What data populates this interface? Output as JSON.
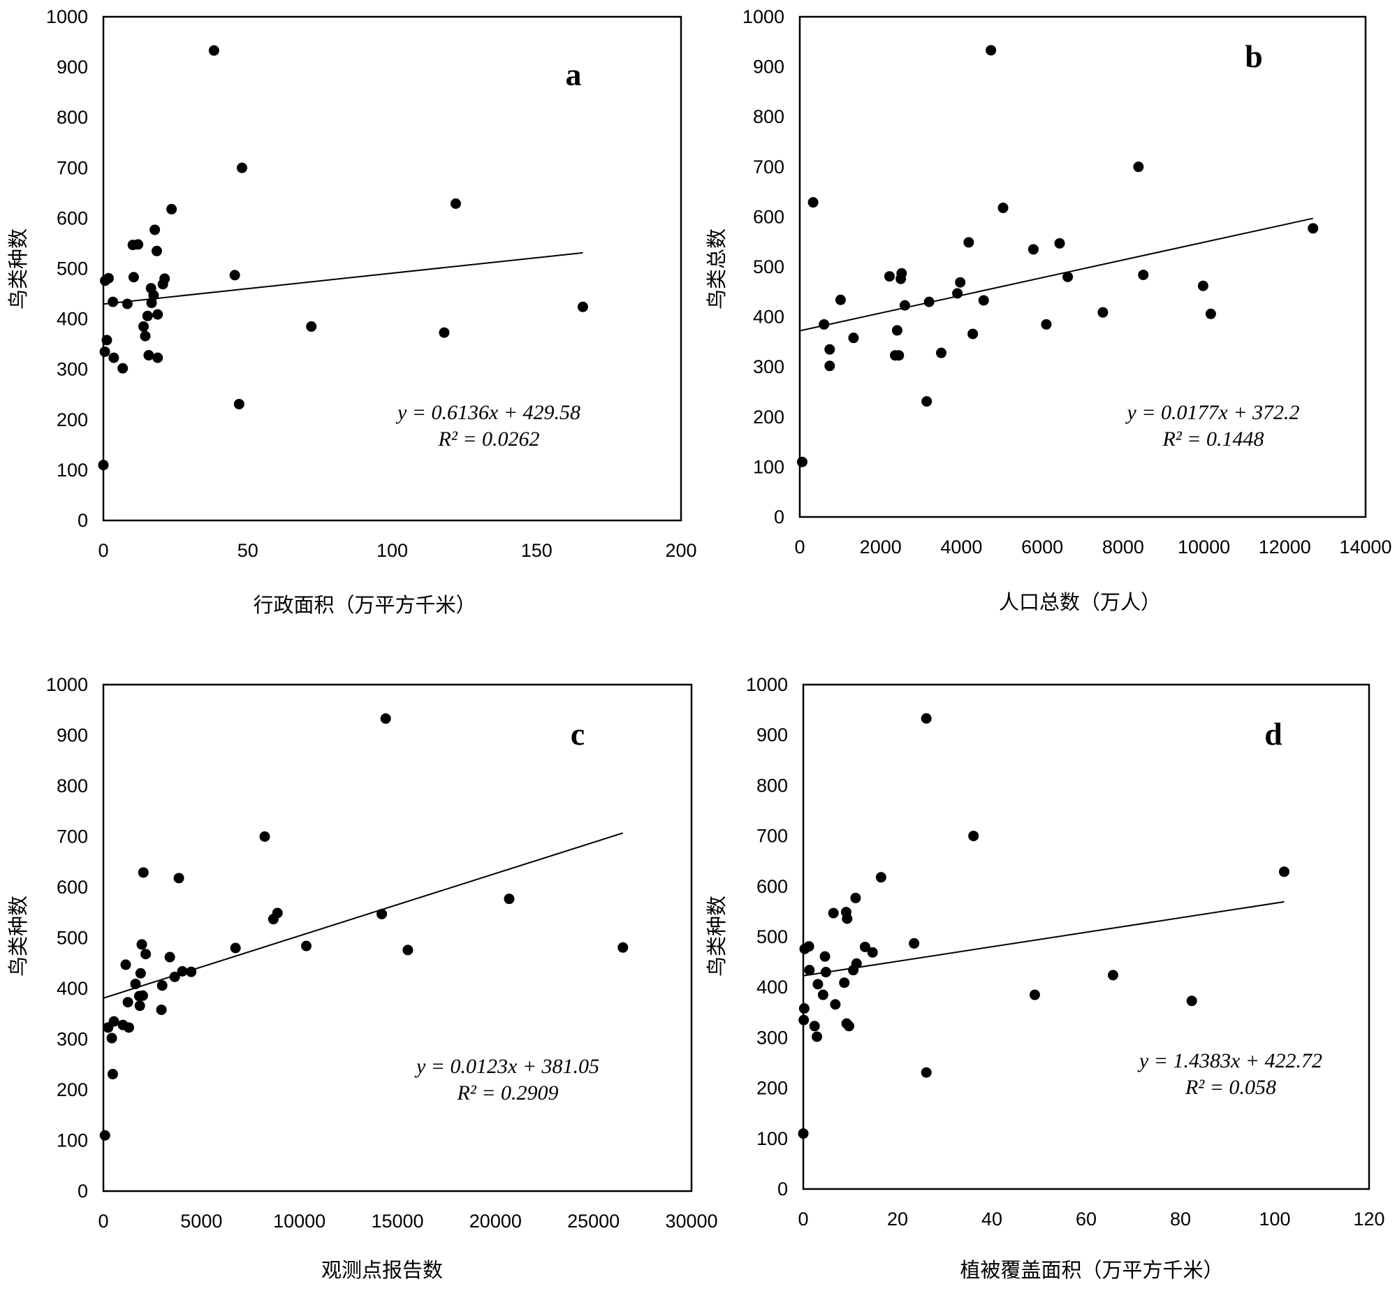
{
  "chart_data": [
    {
      "id": "a",
      "type": "scatter",
      "panel_label": "a",
      "xlabel": "行政面积（万平方千米）",
      "ylabel": "鸟类种数",
      "xlim": [
        0,
        200
      ],
      "ylim": [
        0,
        1000
      ],
      "x_ticks": [
        "0",
        "50",
        "100",
        "150",
        "200"
      ],
      "y_ticks": [
        "0",
        "100",
        "200",
        "300",
        "400",
        "500",
        "600",
        "700",
        "800",
        "900",
        "1000"
      ],
      "equation_text": "y = 0.6136x + 429.58",
      "r2_text": "R² = 0.0262",
      "trendline": {
        "slope": 0.6136,
        "intercept": 429.58,
        "x_range": [
          0,
          166
        ]
      },
      "points": [
        {
          "x": 0.0,
          "y": 110
        },
        {
          "x": 0.5,
          "y": 335
        },
        {
          "x": 0.6,
          "y": 476
        },
        {
          "x": 1.2,
          "y": 358
        },
        {
          "x": 1.8,
          "y": 481
        },
        {
          "x": 3.3,
          "y": 434
        },
        {
          "x": 3.6,
          "y": 323
        },
        {
          "x": 6.7,
          "y": 302
        },
        {
          "x": 8.3,
          "y": 430
        },
        {
          "x": 10.2,
          "y": 547
        },
        {
          "x": 10.5,
          "y": 483
        },
        {
          "x": 12.0,
          "y": 548
        },
        {
          "x": 13.9,
          "y": 385
        },
        {
          "x": 14.5,
          "y": 366
        },
        {
          "x": 15.3,
          "y": 406
        },
        {
          "x": 15.7,
          "y": 328
        },
        {
          "x": 16.5,
          "y": 461
        },
        {
          "x": 16.7,
          "y": 432
        },
        {
          "x": 17.4,
          "y": 447
        },
        {
          "x": 17.8,
          "y": 577
        },
        {
          "x": 18.5,
          "y": 535
        },
        {
          "x": 18.8,
          "y": 409
        },
        {
          "x": 18.8,
          "y": 323
        },
        {
          "x": 20.6,
          "y": 469
        },
        {
          "x": 21.2,
          "y": 480
        },
        {
          "x": 23.6,
          "y": 618
        },
        {
          "x": 38.3,
          "y": 933
        },
        {
          "x": 45.5,
          "y": 487
        },
        {
          "x": 47.0,
          "y": 231
        },
        {
          "x": 48.0,
          "y": 700
        },
        {
          "x": 72.0,
          "y": 385
        },
        {
          "x": 118.0,
          "y": 373
        },
        {
          "x": 122.0,
          "y": 629
        },
        {
          "x": 166.0,
          "y": 424
        }
      ]
    },
    {
      "id": "b",
      "type": "scatter",
      "panel_label": "b",
      "xlabel": "人口总数（万人）",
      "ylabel": "鸟类总数",
      "xlim": [
        0,
        14000
      ],
      "ylim": [
        0,
        1000
      ],
      "x_ticks": [
        "0",
        "2000",
        "4000",
        "6000",
        "8000",
        "10000",
        "12000",
        "14000"
      ],
      "y_ticks": [
        "0",
        "100",
        "200",
        "300",
        "400",
        "500",
        "600",
        "700",
        "800",
        "900",
        "1000"
      ],
      "equation_text": "y = 0.0177x + 372.2",
      "r2_text": "R² = 0.1448",
      "trendline": {
        "slope": 0.0177,
        "intercept": 372.2,
        "x_range": [
          0,
          12700
        ]
      },
      "points": [
        {
          "x": 60,
          "y": 110
        },
        {
          "x": 330,
          "y": 629
        },
        {
          "x": 600,
          "y": 385
        },
        {
          "x": 740,
          "y": 335
        },
        {
          "x": 740,
          "y": 302
        },
        {
          "x": 1010,
          "y": 434
        },
        {
          "x": 1330,
          "y": 358
        },
        {
          "x": 2220,
          "y": 481
        },
        {
          "x": 2360,
          "y": 323
        },
        {
          "x": 2410,
          "y": 373
        },
        {
          "x": 2450,
          "y": 323
        },
        {
          "x": 2500,
          "y": 476
        },
        {
          "x": 2520,
          "y": 487
        },
        {
          "x": 2600,
          "y": 423
        },
        {
          "x": 3140,
          "y": 231
        },
        {
          "x": 3200,
          "y": 430
        },
        {
          "x": 3500,
          "y": 328
        },
        {
          "x": 3900,
          "y": 447
        },
        {
          "x": 3970,
          "y": 469
        },
        {
          "x": 4180,
          "y": 549
        },
        {
          "x": 4280,
          "y": 366
        },
        {
          "x": 4550,
          "y": 433
        },
        {
          "x": 4730,
          "y": 933
        },
        {
          "x": 5030,
          "y": 618
        },
        {
          "x": 5780,
          "y": 535
        },
        {
          "x": 6100,
          "y": 385
        },
        {
          "x": 6430,
          "y": 547
        },
        {
          "x": 6630,
          "y": 480
        },
        {
          "x": 7500,
          "y": 409
        },
        {
          "x": 8380,
          "y": 700
        },
        {
          "x": 8500,
          "y": 484
        },
        {
          "x": 9980,
          "y": 462
        },
        {
          "x": 10170,
          "y": 406
        },
        {
          "x": 12700,
          "y": 577
        }
      ]
    },
    {
      "id": "c",
      "type": "scatter",
      "panel_label": "c",
      "xlabel": "观测点报告数",
      "ylabel": "鸟类种数",
      "xlim": [
        0,
        30000
      ],
      "ylim": [
        0,
        1000
      ],
      "x_ticks": [
        "0",
        "5000",
        "10000",
        "15000",
        "20000",
        "25000",
        "30000"
      ],
      "y_ticks": [
        "0",
        "100",
        "200",
        "300",
        "400",
        "500",
        "600",
        "700",
        "800",
        "900",
        "1000"
      ],
      "equation_text": "y = 0.0123x + 381.05",
      "r2_text": "R² = 0.2909",
      "trendline": {
        "slope": 0.0123,
        "intercept": 381.05,
        "x_range": [
          0,
          26500
        ]
      },
      "points": [
        {
          "x": 80,
          "y": 110
        },
        {
          "x": 240,
          "y": 323
        },
        {
          "x": 430,
          "y": 302
        },
        {
          "x": 480,
          "y": 231
        },
        {
          "x": 540,
          "y": 335
        },
        {
          "x": 1000,
          "y": 328
        },
        {
          "x": 1140,
          "y": 447
        },
        {
          "x": 1250,
          "y": 373
        },
        {
          "x": 1300,
          "y": 323
        },
        {
          "x": 1640,
          "y": 409
        },
        {
          "x": 1830,
          "y": 385
        },
        {
          "x": 1860,
          "y": 366
        },
        {
          "x": 1900,
          "y": 430
        },
        {
          "x": 1960,
          "y": 487
        },
        {
          "x": 2010,
          "y": 386
        },
        {
          "x": 2040,
          "y": 629
        },
        {
          "x": 2160,
          "y": 468
        },
        {
          "x": 2960,
          "y": 358
        },
        {
          "x": 3000,
          "y": 406
        },
        {
          "x": 3390,
          "y": 462
        },
        {
          "x": 3640,
          "y": 423
        },
        {
          "x": 3850,
          "y": 618
        },
        {
          "x": 4030,
          "y": 434
        },
        {
          "x": 4480,
          "y": 433
        },
        {
          "x": 6740,
          "y": 480
        },
        {
          "x": 8230,
          "y": 700
        },
        {
          "x": 8670,
          "y": 537
        },
        {
          "x": 8880,
          "y": 549
        },
        {
          "x": 10350,
          "y": 484
        },
        {
          "x": 14200,
          "y": 547
        },
        {
          "x": 14400,
          "y": 933
        },
        {
          "x": 15530,
          "y": 476
        },
        {
          "x": 20700,
          "y": 577
        },
        {
          "x": 26500,
          "y": 481
        }
      ]
    },
    {
      "id": "d",
      "type": "scatter",
      "panel_label": "d",
      "xlabel": "植被覆盖面积（万平方千米）",
      "ylabel": "鸟类种数",
      "xlim": [
        0,
        120
      ],
      "ylim": [
        0,
        1000
      ],
      "x_ticks": [
        "0",
        "20",
        "40",
        "60",
        "80",
        "100",
        "120"
      ],
      "y_ticks": [
        "0",
        "100",
        "200",
        "300",
        "400",
        "500",
        "600",
        "700",
        "800",
        "900",
        "1000"
      ],
      "equation_text": "y = 1.4383x + 422.72",
      "r2_text": "R² = 0.058",
      "trendline": {
        "slope": 1.4383,
        "intercept": 422.72,
        "x_range": [
          0,
          102
        ]
      },
      "points": [
        {
          "x": 0.0,
          "y": 110
        },
        {
          "x": 0.1,
          "y": 335
        },
        {
          "x": 0.2,
          "y": 358
        },
        {
          "x": 0.3,
          "y": 476
        },
        {
          "x": 1.2,
          "y": 481
        },
        {
          "x": 1.3,
          "y": 434
        },
        {
          "x": 2.4,
          "y": 323
        },
        {
          "x": 2.9,
          "y": 302
        },
        {
          "x": 3.1,
          "y": 406
        },
        {
          "x": 4.2,
          "y": 385
        },
        {
          "x": 4.6,
          "y": 461
        },
        {
          "x": 4.8,
          "y": 430
        },
        {
          "x": 6.4,
          "y": 547
        },
        {
          "x": 6.8,
          "y": 366
        },
        {
          "x": 8.7,
          "y": 409
        },
        {
          "x": 9.1,
          "y": 549
        },
        {
          "x": 9.2,
          "y": 328
        },
        {
          "x": 9.3,
          "y": 536
        },
        {
          "x": 9.7,
          "y": 323
        },
        {
          "x": 10.6,
          "y": 434
        },
        {
          "x": 11.1,
          "y": 577
        },
        {
          "x": 11.3,
          "y": 447
        },
        {
          "x": 13.1,
          "y": 480
        },
        {
          "x": 14.7,
          "y": 469
        },
        {
          "x": 16.5,
          "y": 618
        },
        {
          "x": 23.5,
          "y": 487
        },
        {
          "x": 26.1,
          "y": 933
        },
        {
          "x": 26.1,
          "y": 231
        },
        {
          "x": 36.1,
          "y": 700
        },
        {
          "x": 49.1,
          "y": 385
        },
        {
          "x": 65.7,
          "y": 424
        },
        {
          "x": 82.4,
          "y": 373
        },
        {
          "x": 102.0,
          "y": 629
        }
      ]
    }
  ]
}
